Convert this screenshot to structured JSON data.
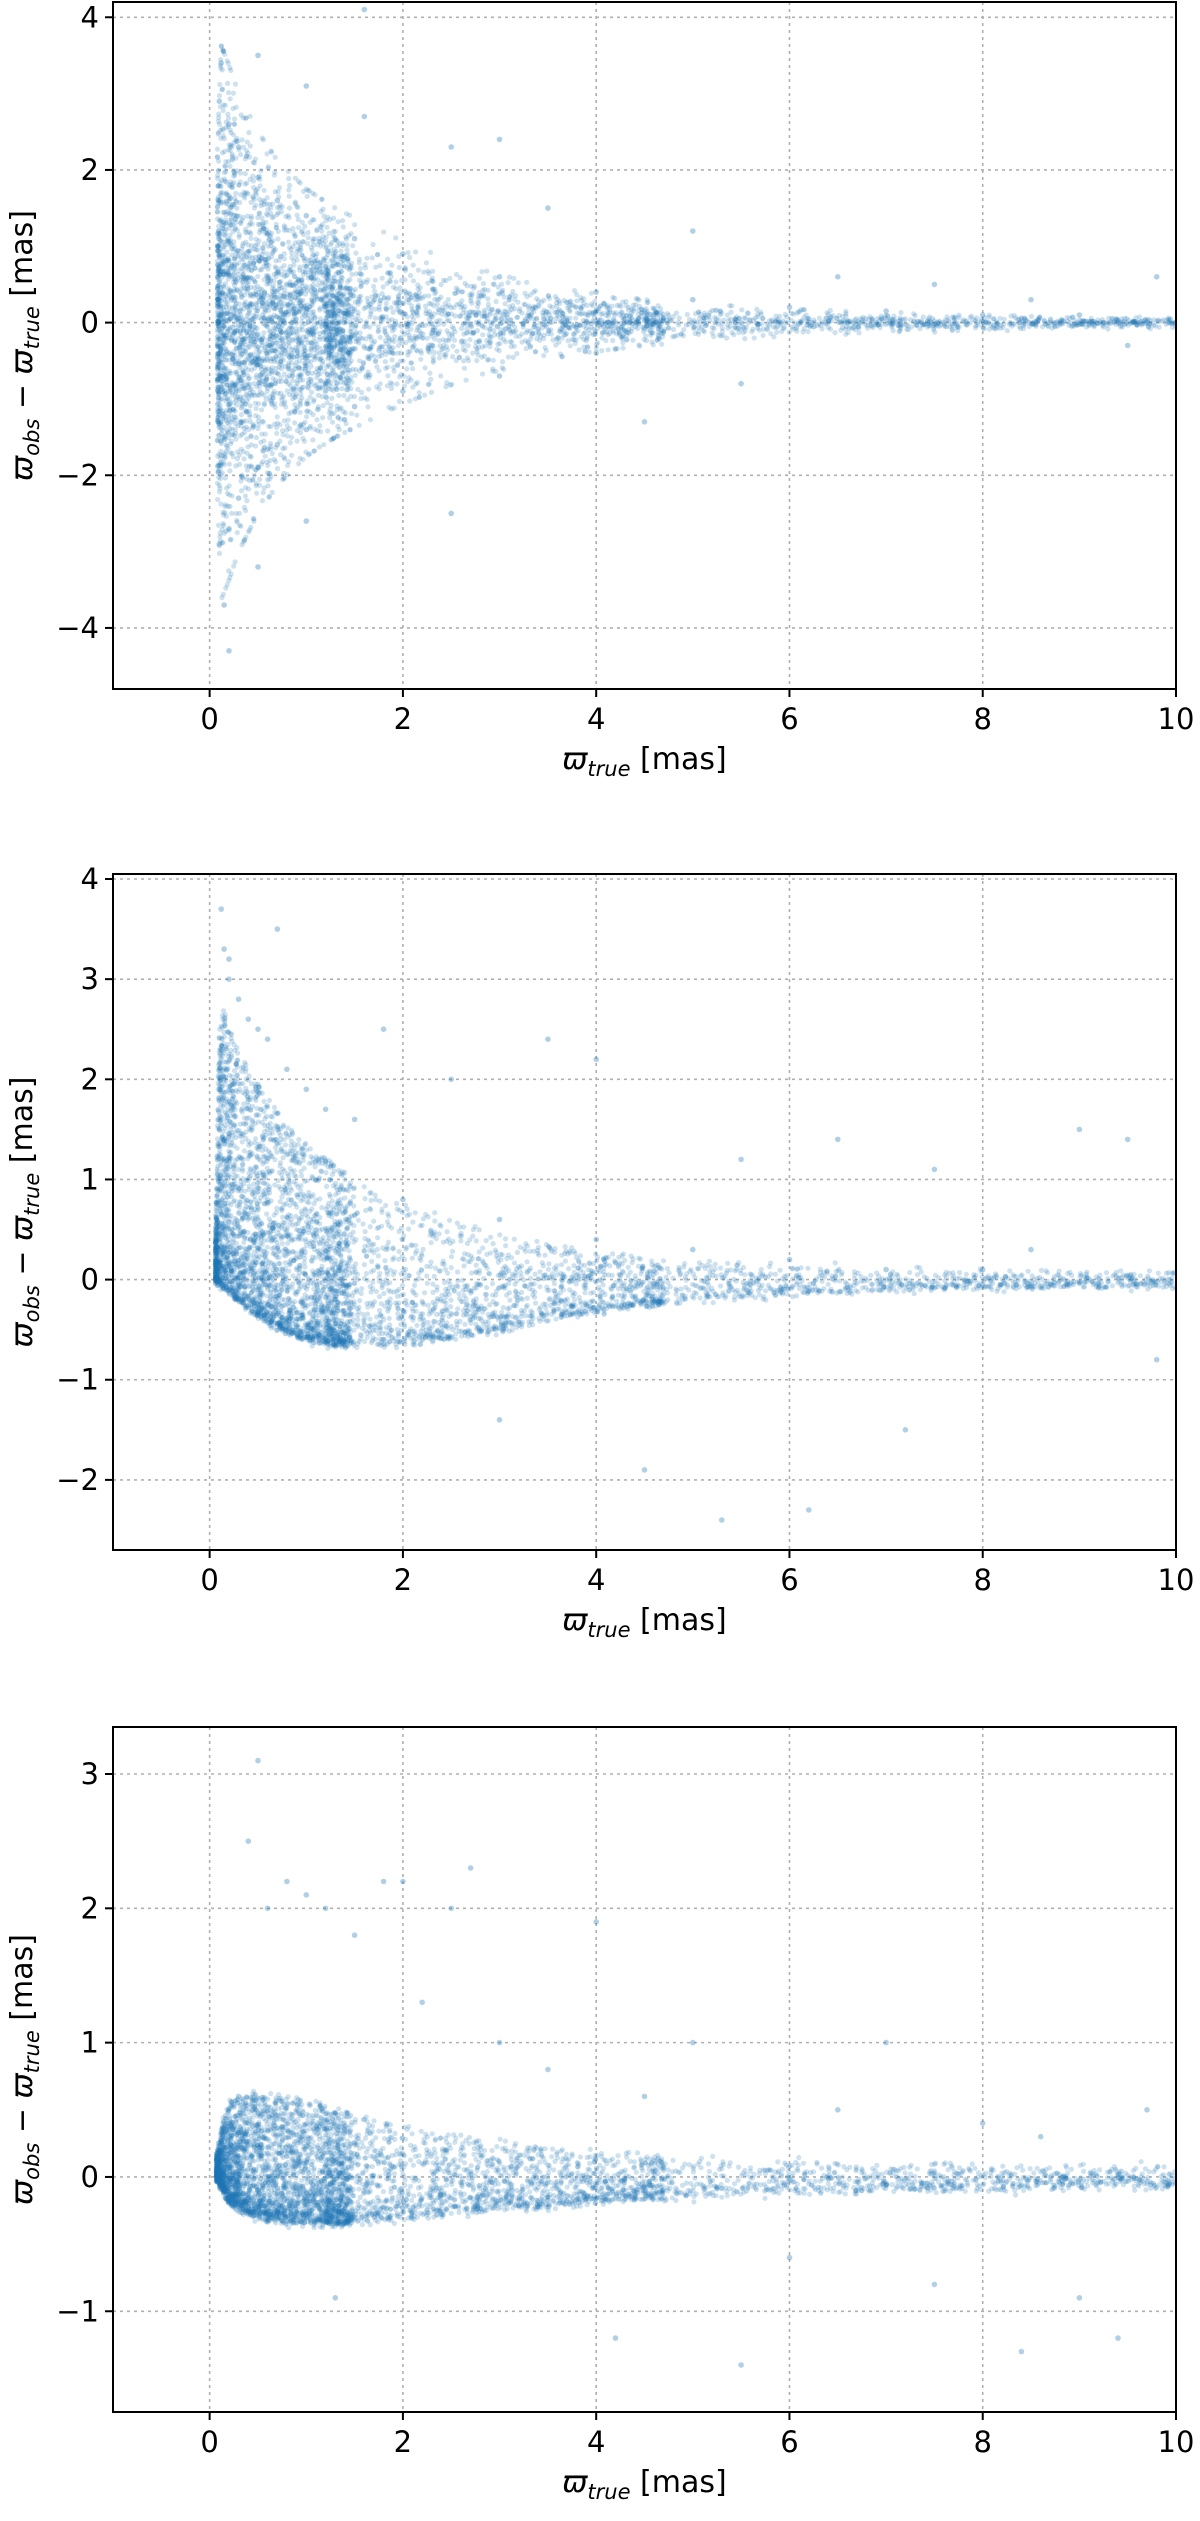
{
  "colors": {
    "points": "#1f77b4"
  },
  "chart_data": [
    {
      "type": "scatter",
      "variant": "symmetric",
      "xlabel": "ϖ true [mas]",
      "xlabel_parts": {
        "symbol": "ϖ",
        "subscript": "true",
        "unit": " [mas]"
      },
      "ylabel": "ϖ obs − ϖ true [mas]",
      "ylabel_parts": {
        "s1": "ϖ",
        "sub1": "obs",
        "minus": " − ",
        "s2": "ϖ",
        "sub2": "true",
        "unit": " [mas]"
      },
      "xlim": [
        -1,
        10
      ],
      "ylim": [
        -4.8,
        4.2
      ],
      "xticks": [
        0,
        2,
        4,
        6,
        8,
        10
      ],
      "xtick_labels": [
        "0",
        "2",
        "4",
        "6",
        "8",
        "10"
      ],
      "yticks": [
        -4,
        -2,
        0,
        2,
        4
      ],
      "ytick_labels": [
        "−4",
        "−2",
        "0",
        "2",
        "4"
      ],
      "grid": true,
      "series": [
        {
          "marker": "point",
          "alpha": 0.15,
          "x": [
            0.1,
            0.1,
            0.1,
            0.12,
            0.2,
            0.2,
            0.3,
            0.3,
            0.5,
            0.5,
            0.5,
            0.5,
            0.7,
            0.7,
            1.0,
            1.0,
            1.0,
            1.0,
            1.5,
            1.5,
            1.6,
            1.6,
            2.0,
            2.0,
            2.5,
            2.5,
            3.0,
            3.0,
            3.0,
            3.5,
            4.0,
            4.0,
            4.5,
            5.0,
            5.0,
            5.5,
            6.0,
            6.5,
            7.0,
            7.5,
            8.0,
            8.5,
            9.0,
            9.5,
            9.8,
            0.15,
            0.2
          ],
          "y": [
            0.0,
            2.9,
            -2.9,
            3.4,
            2.6,
            -2.7,
            2.3,
            -2.3,
            1.9,
            -1.9,
            3.5,
            -3.2,
            1.6,
            -1.6,
            1.4,
            -1.4,
            3.1,
            -2.6,
            1.1,
            -1.1,
            4.1,
            2.7,
            0.9,
            -0.9,
            2.3,
            -2.5,
            0.6,
            -0.7,
            2.4,
            1.5,
            0.4,
            -0.4,
            -1.3,
            0.3,
            1.2,
            -0.8,
            0.2,
            0.6,
            0.15,
            0.5,
            0.1,
            0.3,
            0.1,
            -0.3,
            0.6,
            -3.7,
            -4.3
          ]
        }
      ],
      "density_envelope": {
        "x": [
          0.08,
          0.12,
          0.2,
          0.3,
          0.5,
          0.7,
          1.0,
          1.3,
          1.6,
          2.0,
          2.5,
          3.0,
          3.5,
          4.0,
          4.5,
          5.0,
          6.0,
          7.0,
          8.0,
          9.0,
          10.0
        ],
        "hi": [
          1.8,
          2.9,
          2.7,
          2.4,
          2.0,
          1.7,
          1.4,
          1.2,
          1.05,
          0.85,
          0.65,
          0.5,
          0.38,
          0.3,
          0.24,
          0.2,
          0.14,
          0.11,
          0.09,
          0.07,
          0.06
        ],
        "lo": [
          -1.8,
          -2.9,
          -2.7,
          -2.4,
          -2.0,
          -1.7,
          -1.4,
          -1.2,
          -1.05,
          -0.85,
          -0.65,
          -0.5,
          -0.38,
          -0.3,
          -0.24,
          -0.2,
          -0.14,
          -0.11,
          -0.09,
          -0.07,
          -0.06
        ]
      }
    },
    {
      "type": "scatter",
      "variant": "upper-skewed",
      "xlabel": "ϖ true [mas]",
      "xlabel_parts": {
        "symbol": "ϖ",
        "subscript": "true",
        "unit": " [mas]"
      },
      "ylabel": "ϖ obs − ϖ true [mas]",
      "ylabel_parts": {
        "s1": "ϖ",
        "sub1": "obs",
        "minus": " − ",
        "s2": "ϖ",
        "sub2": "true",
        "unit": " [mas]"
      },
      "xlim": [
        -1,
        10
      ],
      "ylim": [
        -2.7,
        4.05
      ],
      "xticks": [
        0,
        2,
        4,
        6,
        8,
        10
      ],
      "xtick_labels": [
        "0",
        "2",
        "4",
        "6",
        "8",
        "10"
      ],
      "yticks": [
        -2,
        -1,
        0,
        1,
        2,
        3,
        4
      ],
      "ytick_labels": [
        "−2",
        "−1",
        "0",
        "1",
        "2",
        "3",
        "4"
      ],
      "grid": true,
      "series": [
        {
          "marker": "point",
          "alpha": 0.15,
          "x": [
            0.1,
            0.12,
            0.15,
            0.2,
            0.3,
            0.4,
            0.5,
            0.6,
            0.8,
            1.0,
            1.2,
            1.5,
            1.8,
            2.0,
            2.5,
            3.0,
            3.0,
            3.5,
            4.0,
            4.0,
            4.5,
            5.0,
            5.3,
            5.5,
            6.0,
            6.2,
            6.5,
            7.0,
            7.2,
            7.5,
            8.0,
            8.5,
            9.0,
            9.5,
            9.8,
            0.2,
            0.7
          ],
          "y": [
            0.0,
            3.7,
            3.3,
            3.2,
            2.8,
            2.6,
            2.5,
            2.4,
            2.1,
            1.9,
            1.7,
            1.6,
            2.5,
            0.8,
            2.0,
            0.6,
            -1.4,
            2.4,
            0.4,
            2.2,
            -1.9,
            0.3,
            -2.4,
            1.2,
            0.2,
            -2.3,
            1.4,
            0.1,
            -1.5,
            1.1,
            0.1,
            0.3,
            1.5,
            1.4,
            -0.8,
            3.0,
            3.5
          ]
        }
      ],
      "density_envelope": {
        "x": [
          0.06,
          0.1,
          0.15,
          0.25,
          0.4,
          0.6,
          0.8,
          1.0,
          1.3,
          1.6,
          2.0,
          2.5,
          3.0,
          3.5,
          4.0,
          4.5,
          5.0,
          6.0,
          7.0,
          8.0,
          9.0,
          10.0
        ],
        "hi": [
          0.4,
          2.6,
          2.7,
          2.4,
          2.1,
          1.8,
          1.55,
          1.35,
          1.15,
          0.95,
          0.75,
          0.58,
          0.45,
          0.36,
          0.28,
          0.22,
          0.18,
          0.13,
          0.1,
          0.08,
          0.07,
          0.06
        ],
        "lo": [
          -0.02,
          -0.05,
          -0.08,
          -0.18,
          -0.3,
          -0.42,
          -0.52,
          -0.6,
          -0.65,
          -0.66,
          -0.64,
          -0.58,
          -0.5,
          -0.4,
          -0.32,
          -0.25,
          -0.2,
          -0.14,
          -0.1,
          -0.08,
          -0.07,
          -0.06
        ]
      }
    },
    {
      "type": "scatter",
      "variant": "compact",
      "xlabel": "ϖ true [mas]",
      "xlabel_parts": {
        "symbol": "ϖ",
        "subscript": "true",
        "unit": " [mas]"
      },
      "ylabel": "ϖ obs − ϖ true [mas]",
      "ylabel_parts": {
        "s1": "ϖ",
        "sub1": "obs",
        "minus": " − ",
        "s2": "ϖ",
        "sub2": "true",
        "unit": " [mas]"
      },
      "xlim": [
        -1,
        10
      ],
      "ylim": [
        -1.75,
        3.35
      ],
      "xticks": [
        0,
        2,
        4,
        6,
        8,
        10
      ],
      "xtick_labels": [
        "0",
        "2",
        "4",
        "6",
        "8",
        "10"
      ],
      "yticks": [
        -1,
        0,
        1,
        2,
        3
      ],
      "ytick_labels": [
        "−1",
        "0",
        "1",
        "2",
        "3"
      ],
      "grid": true,
      "series": [
        {
          "marker": "point",
          "alpha": 0.15,
          "x": [
            0.1,
            0.2,
            0.4,
            0.5,
            0.6,
            0.8,
            1.0,
            1.2,
            1.5,
            1.8,
            2.0,
            2.2,
            2.5,
            2.7,
            3.0,
            3.5,
            4.0,
            4.2,
            4.5,
            5.0,
            5.5,
            6.0,
            6.5,
            7.0,
            7.5,
            8.0,
            8.4,
            8.6,
            9.0,
            9.4,
            9.7,
            0.3,
            1.3
          ],
          "y": [
            0.05,
            0.3,
            2.5,
            3.1,
            2.0,
            2.2,
            2.1,
            2.0,
            1.8,
            2.2,
            2.2,
            1.3,
            2.0,
            2.3,
            1.0,
            0.8,
            1.9,
            -1.2,
            0.6,
            1.0,
            -1.4,
            -0.6,
            0.5,
            1.0,
            -0.8,
            0.4,
            -1.3,
            0.3,
            -0.9,
            -1.2,
            0.5,
            0.6,
            -0.9
          ]
        }
      ],
      "density_envelope": {
        "x": [
          0.07,
          0.12,
          0.2,
          0.35,
          0.5,
          0.8,
          1.0,
          1.3,
          1.6,
          2.0,
          2.5,
          3.0,
          3.5,
          4.0,
          4.5,
          5.0,
          6.0,
          7.0,
          8.0,
          9.0,
          10.0
        ],
        "hi": [
          0.15,
          0.35,
          0.55,
          0.6,
          0.62,
          0.6,
          0.56,
          0.5,
          0.45,
          0.38,
          0.32,
          0.26,
          0.22,
          0.19,
          0.16,
          0.14,
          0.11,
          0.09,
          0.08,
          0.07,
          0.06
        ],
        "lo": [
          0.0,
          -0.08,
          -0.18,
          -0.26,
          -0.3,
          -0.33,
          -0.34,
          -0.34,
          -0.33,
          -0.3,
          -0.27,
          -0.24,
          -0.21,
          -0.18,
          -0.16,
          -0.14,
          -0.11,
          -0.09,
          -0.08,
          -0.07,
          -0.06
        ]
      }
    }
  ]
}
